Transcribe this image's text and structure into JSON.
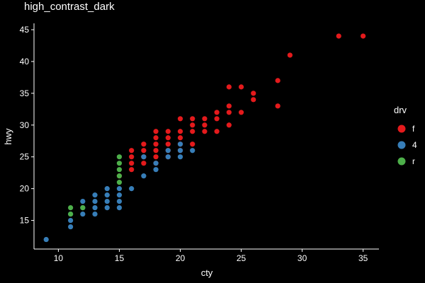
{
  "chart_data": {
    "type": "scatter",
    "title": "high_contrast_dark",
    "xlabel": "cty",
    "ylabel": "hwy",
    "xlim": [
      8,
      36.3
    ],
    "ylim": [
      10.5,
      46
    ],
    "xticks": [
      10,
      15,
      20,
      25,
      30,
      35
    ],
    "yticks": [
      15,
      20,
      25,
      30,
      35,
      40,
      45
    ],
    "grid": false,
    "legend": {
      "title": "drv",
      "position": "right",
      "entries": [
        {
          "label": "f",
          "color": "#e41a1c"
        },
        {
          "label": "4",
          "color": "#377eb8"
        },
        {
          "label": "r",
          "color": "#4daf4a"
        }
      ]
    },
    "series": [
      {
        "name": "f",
        "color": "#e41a1c",
        "points": [
          [
            15,
            22
          ],
          [
            16,
            23
          ],
          [
            16,
            24
          ],
          [
            16,
            25
          ],
          [
            16,
            26
          ],
          [
            17,
            24
          ],
          [
            17,
            25
          ],
          [
            17,
            26
          ],
          [
            17,
            27
          ],
          [
            18,
            24
          ],
          [
            18,
            25
          ],
          [
            18,
            26
          ],
          [
            18,
            27
          ],
          [
            18,
            28
          ],
          [
            18,
            29
          ],
          [
            19,
            25
          ],
          [
            19,
            26
          ],
          [
            19,
            27
          ],
          [
            19,
            28
          ],
          [
            19,
            29
          ],
          [
            20,
            26
          ],
          [
            20,
            27
          ],
          [
            20,
            28
          ],
          [
            20,
            29
          ],
          [
            20,
            31
          ],
          [
            21,
            27
          ],
          [
            21,
            29
          ],
          [
            21,
            30
          ],
          [
            21,
            31
          ],
          [
            22,
            29
          ],
          [
            22,
            30
          ],
          [
            22,
            31
          ],
          [
            23,
            29
          ],
          [
            23,
            31
          ],
          [
            23,
            32
          ],
          [
            24,
            30
          ],
          [
            24,
            32
          ],
          [
            24,
            33
          ],
          [
            24,
            36
          ],
          [
            25,
            32
          ],
          [
            25,
            36
          ],
          [
            26,
            34
          ],
          [
            26,
            35
          ],
          [
            28,
            33
          ],
          [
            28,
            37
          ],
          [
            29,
            41
          ],
          [
            33,
            44
          ],
          [
            35,
            44
          ]
        ]
      },
      {
        "name": "4",
        "color": "#377eb8",
        "points": [
          [
            9,
            12
          ],
          [
            11,
            14
          ],
          [
            11,
            15
          ],
          [
            11,
            16
          ],
          [
            12,
            16
          ],
          [
            12,
            17
          ],
          [
            12,
            18
          ],
          [
            13,
            16
          ],
          [
            13,
            17
          ],
          [
            13,
            18
          ],
          [
            13,
            19
          ],
          [
            14,
            17
          ],
          [
            14,
            18
          ],
          [
            14,
            19
          ],
          [
            14,
            20
          ],
          [
            15,
            17
          ],
          [
            15,
            18
          ],
          [
            15,
            19
          ],
          [
            15,
            20
          ],
          [
            16,
            20
          ],
          [
            17,
            22
          ],
          [
            17,
            25
          ],
          [
            18,
            23
          ],
          [
            18,
            24
          ],
          [
            19,
            25
          ],
          [
            19,
            26
          ],
          [
            20,
            25
          ],
          [
            20,
            26
          ],
          [
            20,
            27
          ],
          [
            21,
            26
          ]
        ]
      },
      {
        "name": "r",
        "color": "#4daf4a",
        "points": [
          [
            11,
            16
          ],
          [
            11,
            17
          ],
          [
            12,
            17
          ],
          [
            15,
            21
          ],
          [
            15,
            22
          ],
          [
            15,
            23
          ],
          [
            15,
            24
          ],
          [
            15,
            25
          ]
        ]
      }
    ]
  }
}
